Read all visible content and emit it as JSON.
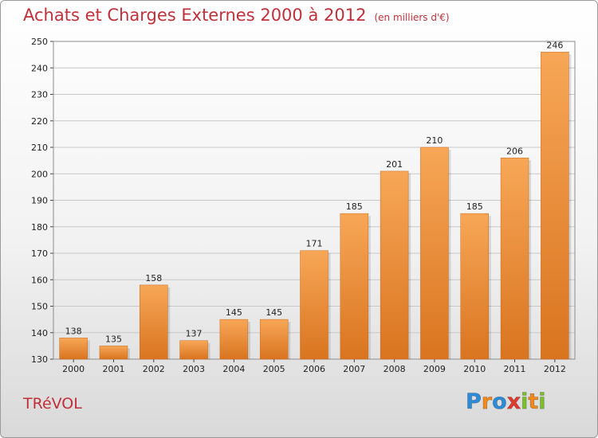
{
  "header": {
    "title": "Achats et Charges Externes 2000 à 2012",
    "unit_note": "(en milliers d'€)"
  },
  "footer": {
    "place_name": "TRéVOL",
    "brand": "Proxiti",
    "brand_letters": [
      {
        "ch": "P",
        "color": "#2e8bd8"
      },
      {
        "ch": "r",
        "color": "#f08a1c"
      },
      {
        "ch": "o",
        "color": "#2e8bd8"
      },
      {
        "ch": "x",
        "color": "#e03a2f"
      },
      {
        "ch": "i",
        "color": "#7bbf2a"
      },
      {
        "ch": "t",
        "color": "#f08a1c"
      },
      {
        "ch": "i",
        "color": "#7bbf2a"
      }
    ]
  },
  "chart_data": {
    "type": "bar",
    "title": "Achats et Charges Externes 2000 à 2012",
    "subtitle": "(en milliers d'€)",
    "xlabel": "",
    "ylabel": "",
    "categories": [
      "2000",
      "2001",
      "2002",
      "2003",
      "2004",
      "2005",
      "2006",
      "2007",
      "2008",
      "2009",
      "2010",
      "2011",
      "2012"
    ],
    "values": [
      138,
      135,
      158,
      137,
      145,
      145,
      171,
      185,
      201,
      210,
      185,
      206,
      246
    ],
    "ylim": [
      130,
      250
    ],
    "yticks": [
      130,
      140,
      150,
      160,
      170,
      180,
      190,
      200,
      210,
      220,
      230,
      240,
      250
    ],
    "grid": true,
    "bar_color_top": "#f7a757",
    "bar_color_bottom": "#d9741f",
    "show_data_labels": true
  }
}
